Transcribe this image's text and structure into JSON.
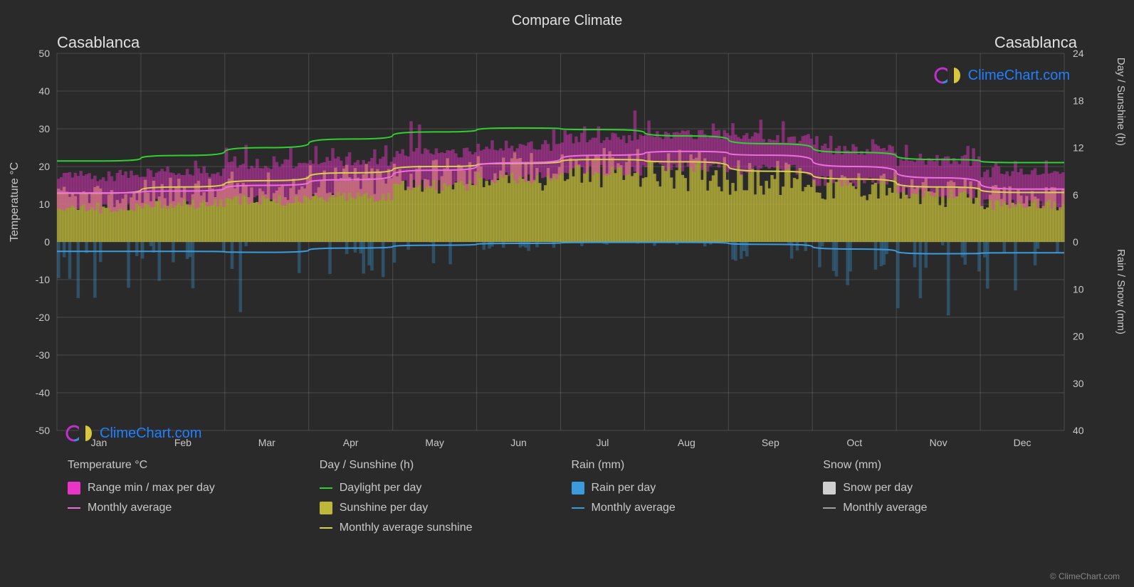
{
  "title": "Compare Climate",
  "city_left": "Casablanca",
  "city_right": "Casablanca",
  "y_left_label": "Temperature °C",
  "y_right1_label": "Day / Sunshine (h)",
  "y_right2_label": "Rain / Snow (mm)",
  "copyright": "© ClimeChart.com",
  "watermark_text": "ClimeChart.com",
  "chart": {
    "type": "composite-climate",
    "months": [
      "Jan",
      "Feb",
      "Mar",
      "Apr",
      "May",
      "Jun",
      "Jul",
      "Aug",
      "Sep",
      "Oct",
      "Nov",
      "Dec"
    ],
    "temp_axis": {
      "min": -50,
      "max": 50,
      "step": 10
    },
    "sun_axis": {
      "min": 0,
      "max": 24,
      "step": 6
    },
    "rain_axis": {
      "min": 0,
      "max": 40,
      "step": 10
    },
    "bg_color": "#2a2a2a",
    "grid_color": "#888888",
    "grid_opacity": 0.35,
    "axis_tick_color": "#c8c8c8",
    "tick_fontsize": 14,
    "daylight": {
      "values": [
        10.3,
        11.0,
        12.0,
        13.1,
        14.0,
        14.5,
        14.3,
        13.5,
        12.5,
        11.4,
        10.5,
        10.1
      ],
      "color": "#30d030",
      "stroke_width": 2
    },
    "sunshine_avg": {
      "values": [
        6.2,
        7.0,
        7.8,
        8.8,
        9.6,
        10.0,
        10.5,
        10.2,
        9.0,
        8.0,
        7.0,
        6.3
      ],
      "color": "#d8d050",
      "stroke_width": 2
    },
    "sunshine_daily_fill": {
      "base": 0,
      "peaks": [
        6.5,
        7.5,
        8.2,
        9.3,
        10.1,
        10.6,
        11.0,
        10.7,
        9.5,
        8.5,
        7.4,
        6.6
      ],
      "color": "#bdb83a",
      "opacity": 0.75
    },
    "temp_range": {
      "min": [
        9,
        10,
        11,
        12,
        15,
        17,
        19,
        20,
        19,
        16,
        13,
        10
      ],
      "max": [
        17,
        18,
        20,
        21,
        23,
        25,
        27,
        28,
        27,
        24,
        21,
        18
      ],
      "spike_max": [
        20,
        22,
        26,
        28,
        32,
        34,
        35,
        36,
        34,
        30,
        26,
        22
      ],
      "color": "#e835c8",
      "opacity": 0.45
    },
    "temp_avg": {
      "values": [
        13,
        13.5,
        15,
        16.5,
        19,
        21,
        23,
        24,
        23,
        20,
        17,
        14
      ],
      "color": "#ee6ee0",
      "stroke_width": 2
    },
    "rain_avg": {
      "values": [
        2.0,
        2.0,
        2.2,
        1.3,
        0.7,
        0.3,
        0.1,
        0.1,
        0.5,
        1.5,
        2.5,
        2.3
      ],
      "color": "#3a9cdc",
      "stroke_width": 2
    },
    "rain_daily": {
      "peaks": [
        12,
        10,
        15,
        8,
        5,
        2,
        1,
        1,
        4,
        10,
        18,
        15
      ],
      "color": "#3a9cdc",
      "opacity": 0.35
    }
  },
  "legend": {
    "cols": [
      {
        "header": "Temperature °C",
        "items": [
          {
            "kind": "swatch",
            "color": "#e835c8",
            "label": "Range min / max per day"
          },
          {
            "kind": "line",
            "color": "#ee6ee0",
            "label": "Monthly average"
          }
        ]
      },
      {
        "header": "Day / Sunshine (h)",
        "items": [
          {
            "kind": "line",
            "color": "#30d030",
            "label": "Daylight per day"
          },
          {
            "kind": "swatch",
            "color": "#bdb83a",
            "label": "Sunshine per day"
          },
          {
            "kind": "line",
            "color": "#d8d050",
            "label": "Monthly average sunshine"
          }
        ]
      },
      {
        "header": "Rain (mm)",
        "items": [
          {
            "kind": "swatch",
            "color": "#3a9cdc",
            "label": "Rain per day"
          },
          {
            "kind": "line",
            "color": "#3a9cdc",
            "label": "Monthly average"
          }
        ]
      },
      {
        "header": "Snow (mm)",
        "items": [
          {
            "kind": "swatch",
            "color": "#d0d0d0",
            "label": "Snow per day"
          },
          {
            "kind": "line",
            "color": "#a0a0a0",
            "label": "Monthly average"
          }
        ]
      }
    ]
  }
}
